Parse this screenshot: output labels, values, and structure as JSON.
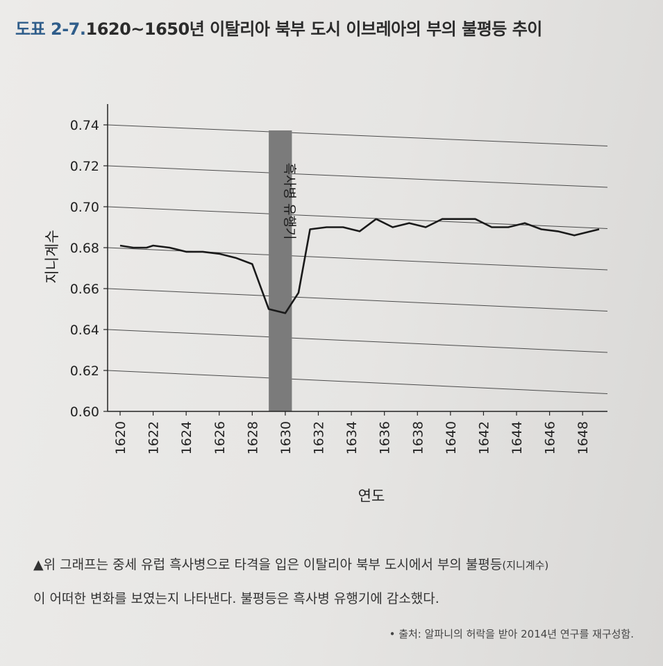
{
  "title": {
    "label": "도표 2-7.",
    "text": "1620~1650년 이탈리아 북부 도시 이브레아의 부의 불평등 추이"
  },
  "chart_data": {
    "type": "line",
    "xlabel": "연도",
    "ylabel": "지니계수",
    "xlim": [
      1620,
      1649
    ],
    "ylim": [
      0.6,
      0.74
    ],
    "x_ticks": [
      "1620",
      "1622",
      "1624",
      "1626",
      "1628",
      "1630",
      "1632",
      "1634",
      "1636",
      "1638",
      "1640",
      "1642",
      "1644",
      "1646",
      "1648"
    ],
    "y_ticks": [
      "0.60",
      "0.62",
      "0.64",
      "0.66",
      "0.68",
      "0.70",
      "0.72",
      "0.74"
    ],
    "band": {
      "label": "흑사병 유행기",
      "x_start": 1629,
      "x_end": 1630.4,
      "color": "#7b7b7b"
    },
    "series": [
      {
        "x": [
          1620,
          1620.8,
          1621.6,
          1622,
          1623,
          1624,
          1625,
          1626,
          1627,
          1628,
          1629,
          1630,
          1630.8,
          1631.5,
          1632.5,
          1633.5,
          1634.5,
          1635.5,
          1636.5,
          1637.5,
          1638.5,
          1639.5,
          1640.5,
          1641.5,
          1642.5,
          1643.5,
          1644.5,
          1645.5,
          1646.5,
          1647.5,
          1648.5,
          1649
        ],
        "values": [
          0.681,
          0.68,
          0.68,
          0.681,
          0.68,
          0.678,
          0.678,
          0.677,
          0.675,
          0.672,
          0.65,
          0.648,
          0.658,
          0.689,
          0.69,
          0.69,
          0.688,
          0.694,
          0.69,
          0.692,
          0.69,
          0.694,
          0.694,
          0.694,
          0.69,
          0.69,
          0.692,
          0.689,
          0.688,
          0.686,
          0.688,
          0.689
        ],
        "color": "#1a1a1a"
      }
    ]
  },
  "caption": {
    "line1": "▲위 그래프는 중세 유럽 흑사병으로 타격을 입은 이탈리아 북부 도시에서 부의 불평등",
    "line1_paren": "(지니계수)",
    "line2": "이 어떠한 변화를 보였는지 나타낸다. 불평등은 흑사병 유행기에 감소했다."
  },
  "source": "• 출처: 알파니의 허락을 받아 2014년 연구를 재구성함."
}
